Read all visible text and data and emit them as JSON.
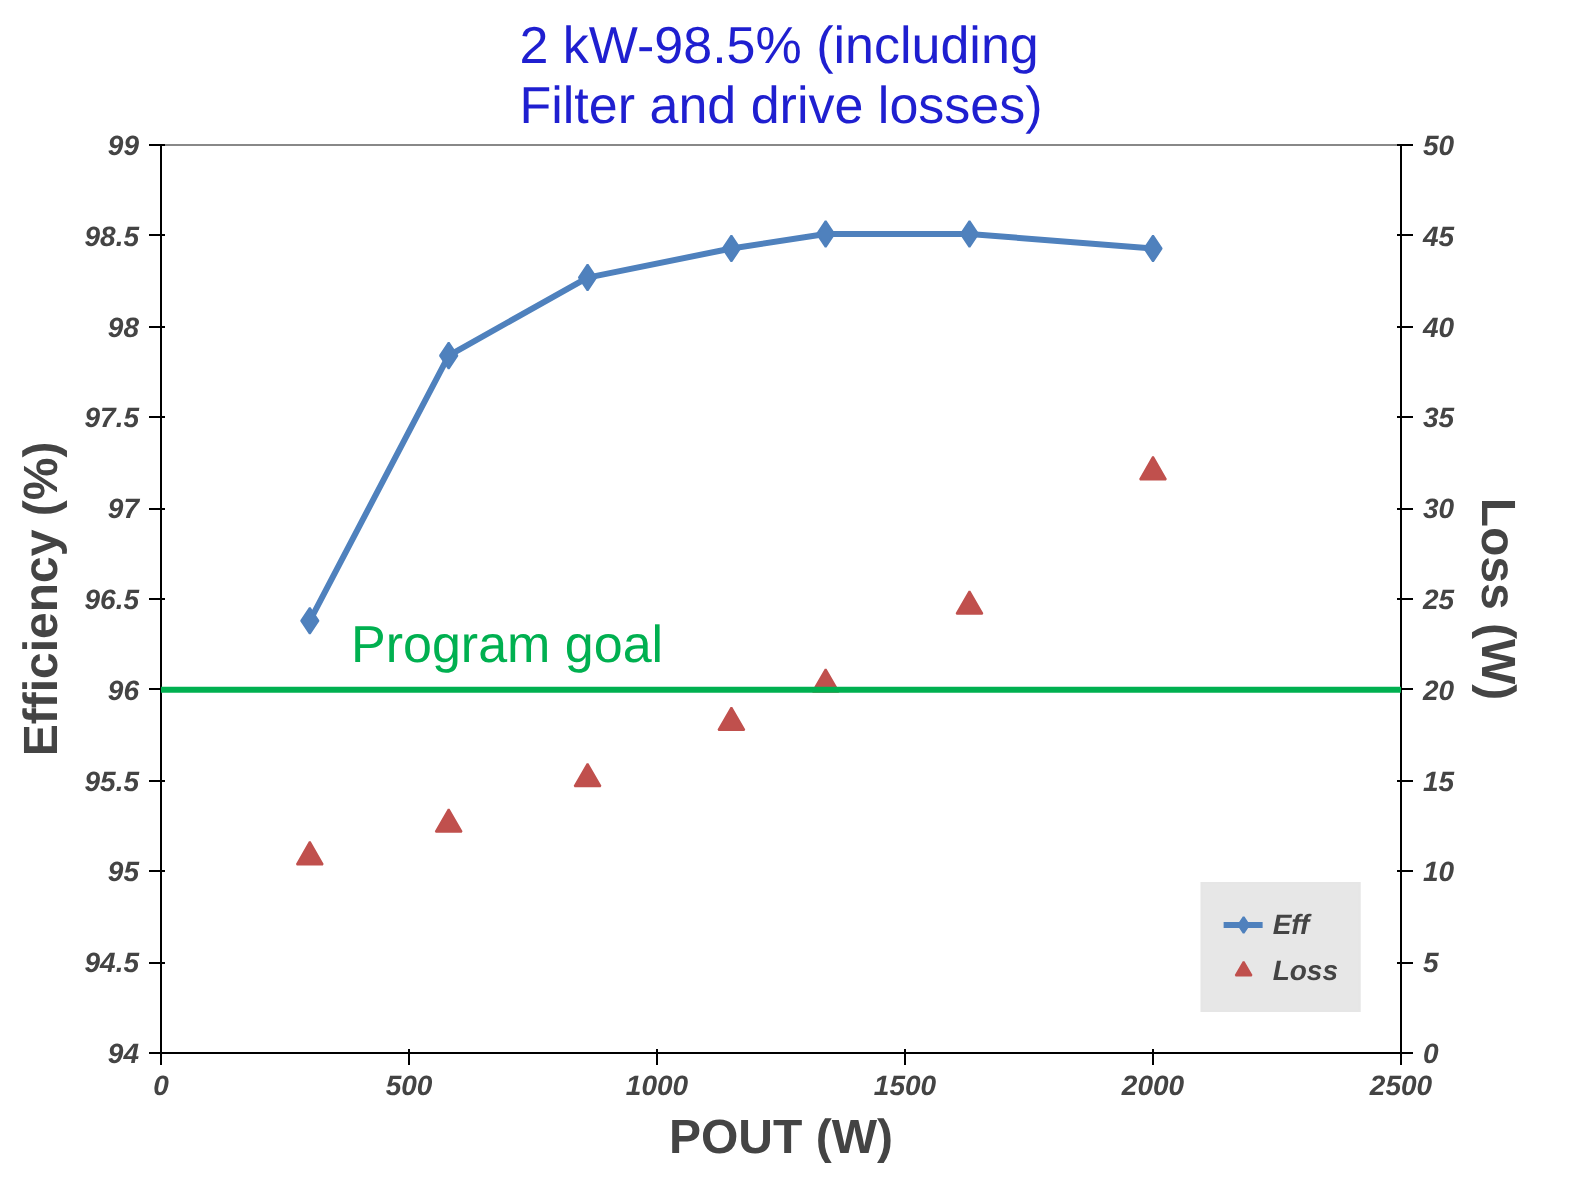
{
  "chart_data": {
    "type": "line",
    "title": "2 kW-98.5% (including\nFilter and drive losses)",
    "xlabel": "POUT (W)",
    "ylabel": "Efficiency (%)",
    "y2label": "Loss (W)",
    "x": [
      300,
      580,
      860,
      1150,
      1340,
      1630,
      2000
    ],
    "series": [
      {
        "name": "Eff",
        "marker": "diamond",
        "color": "#4f81bd",
        "values": [
          96.38,
          97.84,
          98.27,
          98.43,
          98.51,
          98.51,
          98.43
        ]
      },
      {
        "name": "Loss",
        "type": "scatter",
        "marker": "triangle",
        "axis": "y2",
        "color": "#c0504d",
        "values": [
          10.8,
          12.6,
          15.1,
          18.2,
          20.3,
          24.6,
          32.0
        ]
      }
    ],
    "xlim": [
      0,
      2500
    ],
    "xticks": [
      0,
      500,
      1000,
      1500,
      2000,
      2500
    ],
    "ylim": [
      94,
      99
    ],
    "yticks": [
      94,
      94.5,
      95,
      95.5,
      96,
      96.5,
      97,
      97.5,
      98,
      98.5,
      99
    ],
    "y2lim": [
      0,
      50
    ],
    "y2ticks": [
      0,
      5,
      10,
      15,
      20,
      25,
      30,
      35,
      40,
      45,
      50
    ],
    "ref_lines": [
      {
        "axis": "y",
        "value": 96,
        "label": "Program goal",
        "color": "#00b050"
      }
    ],
    "legend": "bottom right",
    "grid": false
  }
}
